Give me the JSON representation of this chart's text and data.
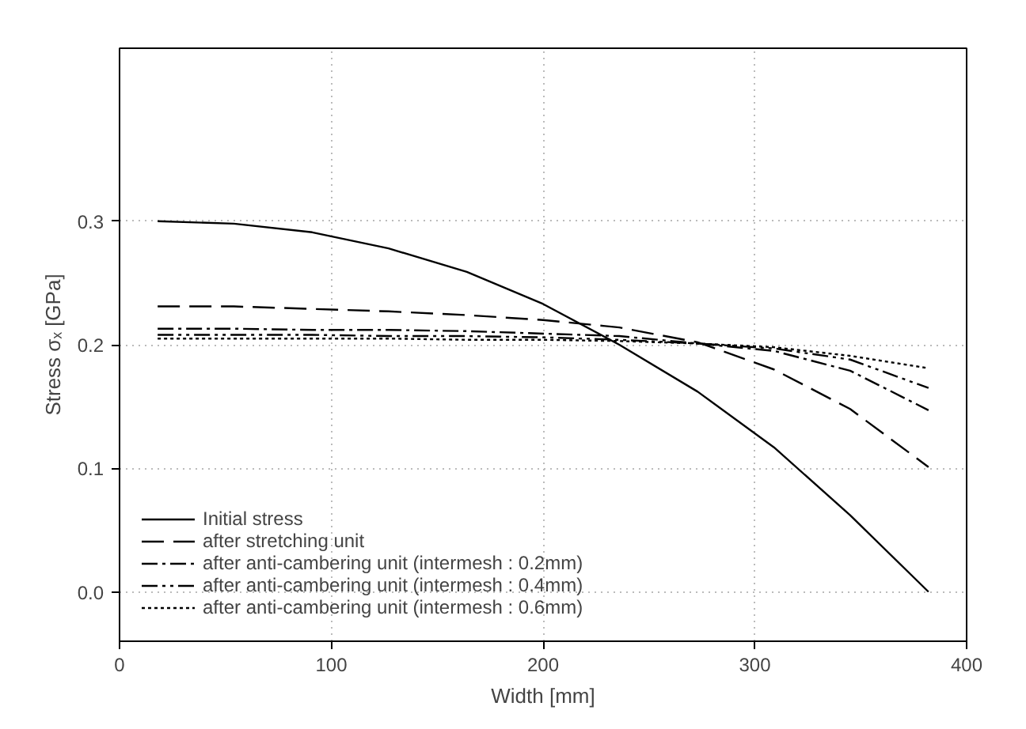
{
  "chart_data": {
    "type": "line",
    "xlabel": "Width [mm]",
    "ylabel": "Stress σₓ [GPa]",
    "x": [
      18,
      54,
      91,
      127,
      164,
      200,
      236,
      273,
      309,
      345,
      382
    ],
    "xlim": [
      0,
      400
    ],
    "xticks": [
      0,
      100,
      200,
      300,
      400
    ],
    "ylim": [
      -0.04,
      0.44
    ],
    "yticks": [
      {
        "value": 0.0,
        "label": "0.0"
      },
      {
        "value": 0.1,
        "label": "0.1"
      },
      {
        "value": 0.2,
        "label": "0.2"
      },
      {
        "value": 0.3,
        "label": "0.3"
      }
    ],
    "grid": true,
    "legend": "bottom left",
    "marker": "none",
    "series": [
      {
        "name": "Initial stress",
        "color": "#000000",
        "line_style": "solid",
        "values": [
          0.3,
          0.298,
          0.291,
          0.278,
          0.259,
          0.233,
          0.2,
          0.162,
          0.117,
          0.062,
          0.0
        ]
      },
      {
        "name": "after stretching unit",
        "color": "#000000",
        "line_style": "dashed",
        "values": [
          0.231,
          0.231,
          0.229,
          0.227,
          0.224,
          0.22,
          0.214,
          0.202,
          0.18,
          0.148,
          0.101
        ]
      },
      {
        "name": "after anti-cambering unit (intermesh : 0.2mm)",
        "color": "#000000",
        "line_style": "dashdot",
        "values": [
          0.213,
          0.213,
          0.212,
          0.212,
          0.211,
          0.209,
          0.207,
          0.201,
          0.195,
          0.179,
          0.147
        ]
      },
      {
        "name": "after anti-cambering unit (intermesh : 0.4mm)",
        "color": "#000000",
        "line_style": "dashdotdot",
        "values": [
          0.208,
          0.208,
          0.208,
          0.207,
          0.207,
          0.206,
          0.204,
          0.201,
          0.197,
          0.188,
          0.165
        ]
      },
      {
        "name": "after anti-cambering unit (intermesh : 0.6mm)",
        "color": "#000000",
        "line_style": "dotted",
        "values": [
          0.205,
          0.205,
          0.205,
          0.205,
          0.204,
          0.204,
          0.203,
          0.201,
          0.198,
          0.191,
          0.181
        ]
      }
    ]
  }
}
